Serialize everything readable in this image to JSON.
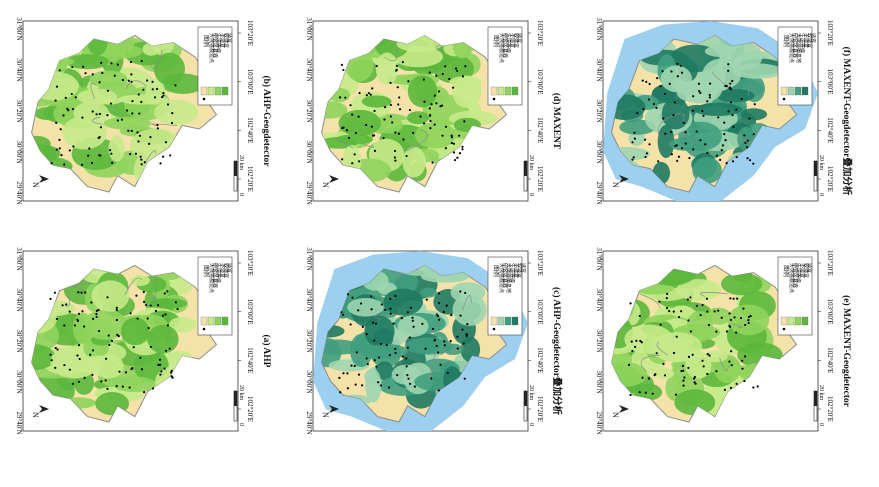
{
  "colors": {
    "bg": "#f4e2a8",
    "green_light": "#c6ea8a",
    "green": "#8fd45c",
    "green_dark": "#5cb83c",
    "teal_light": "#9fd6b0",
    "teal": "#3f9e7e",
    "teal_dark": "#1e7a62",
    "habitat_blue": "#9ccff0",
    "boundary": "#8c8c8c"
  },
  "panels": [
    {
      "id": "a",
      "caption": "(a) AHP",
      "legend_title": "图例",
      "legend_items": [
        "大熊猫痕迹点",
        "研究区县界",
        "生境等级",
        "不适宜",
        "较适宜",
        "适宜"
      ],
      "scheme": "green",
      "habitat": false
    },
    {
      "id": "b",
      "caption": "(b) AHP-Geogdetector",
      "legend_title": "图例",
      "legend_items": [
        "大熊猫痕迹点",
        "研究区县界",
        "生境等级",
        "不适宜",
        "较适宜",
        "适宜"
      ],
      "scheme": "green",
      "habitat": false
    },
    {
      "id": "c",
      "caption": "(c) AHP-Geogdetector叠加分析",
      "legend_title": "图例",
      "legend_items": [
        "大熊猫痕迹点",
        "研究区县界",
        "大熊猫栖息地",
        "生境等级",
        "不适宜",
        "较适宜",
        "适宜"
      ],
      "scheme": "teal",
      "habitat": true
    },
    {
      "id": "d",
      "caption": "(d) MAXENT",
      "legend_title": "图例",
      "legend_items": [
        "大熊猫痕迹点",
        "研究区县界",
        "生境等级",
        "不适宜",
        "较适宜",
        "适宜"
      ],
      "scheme": "green",
      "habitat": false
    },
    {
      "id": "e",
      "caption": "(e) MAXENT-Geogdetector",
      "legend_title": "图例",
      "legend_items": [
        "大熊猫痕迹点",
        "研究区县界",
        "生境等级",
        "不适宜",
        "较适宜",
        "适宜"
      ],
      "scheme": "green",
      "habitat": false
    },
    {
      "id": "f",
      "caption": "(f) MAXENT-Geogdetector叠加分析",
      "legend_title": "图例",
      "legend_items": [
        "大熊猫痕迹点",
        "研究区县界",
        "大熊猫栖息地",
        "生境等级",
        "不适宜",
        "较适宜",
        "适宜"
      ],
      "scheme": "teal",
      "habitat": true
    }
  ],
  "lon_ticks": [
    "102°20′E",
    "102°40′E",
    "103°00′E",
    "103°20′E"
  ],
  "lat_ticks": [
    "29°40′N",
    "30°00′N",
    "30°20′N",
    "30°40′N",
    "31°00′N"
  ],
  "scalebar": {
    "zero": "0",
    "label": "20 km"
  },
  "north": "N"
}
